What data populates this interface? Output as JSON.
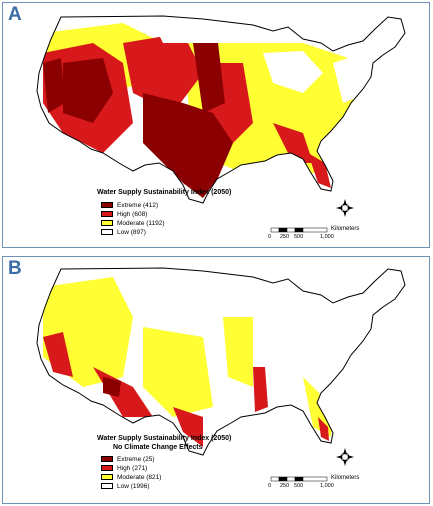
{
  "panels": [
    {
      "letter": "A",
      "legend_title": "Water Supply Sustainability Index (2050)",
      "legend_subtitle": "",
      "legend": [
        {
          "label": "Extreme (412)",
          "color": "#8b0000"
        },
        {
          "label": "High (608)",
          "color": "#d7191c"
        },
        {
          "label": "Moderate (1192)",
          "color": "#ffff33"
        },
        {
          "label": "Low (897)",
          "color": "#ffffff"
        }
      ],
      "scale_ticks": [
        "0",
        "250",
        "500",
        "1,000"
      ],
      "scale_unit": "Kilometers"
    },
    {
      "letter": "B",
      "legend_title": "Water Supply Sustainability Index (2050)",
      "legend_subtitle": "No Climate Change Effects",
      "legend": [
        {
          "label": "Extreme (25)",
          "color": "#8b0000"
        },
        {
          "label": "High (271)",
          "color": "#d7191c"
        },
        {
          "label": "Moderate (821)",
          "color": "#ffff33"
        },
        {
          "label": "Low (1996)",
          "color": "#ffffff"
        }
      ],
      "scale_ticks": [
        "0",
        "250",
        "500",
        "1,000"
      ],
      "scale_unit": "Kilometers"
    }
  ],
  "north_arrow_icon": "compass-north-arrow-icon",
  "colors": {
    "frame": "#6f8fb3",
    "letter": "#3a6ea5"
  }
}
